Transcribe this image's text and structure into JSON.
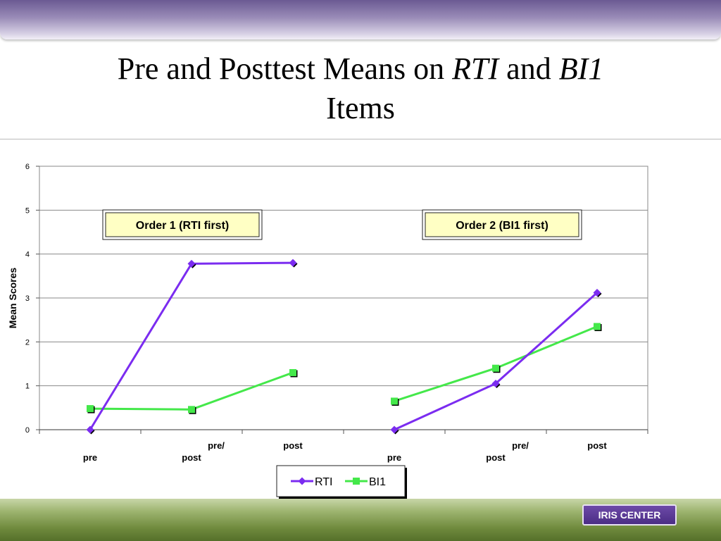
{
  "slide": {
    "title_part1": "Pre and Posttest Means on ",
    "title_rti": "RTI",
    "title_and": " and ",
    "title_bi1": "BI1",
    "title_line2": "Items",
    "badge": "IRIS CENTER"
  },
  "chart_data": {
    "type": "line",
    "title": "",
    "ylabel": "Mean Scores",
    "ylim": [
      0,
      6
    ],
    "yticks": [
      0,
      1,
      2,
      3,
      4,
      5,
      6
    ],
    "grid": true,
    "legend_position": "bottom-center",
    "groups": [
      {
        "label": "Order 1 (RTI first)",
        "categories": [
          "pre",
          "pre/\npost",
          "post"
        ]
      },
      {
        "label": "Order 2 (BI1 first)",
        "categories": [
          "pre",
          "pre/\npost",
          "post"
        ]
      }
    ],
    "series": [
      {
        "name": "RTI",
        "color": "#7b2cf0",
        "marker": "diamond",
        "values": [
          [
            0.0,
            3.78,
            3.8
          ],
          [
            0.0,
            1.05,
            3.12
          ]
        ]
      },
      {
        "name": "BI1",
        "color": "#44e84a",
        "marker": "square",
        "values": [
          [
            0.48,
            0.46,
            1.3
          ],
          [
            0.65,
            1.4,
            2.35
          ]
        ]
      }
    ]
  }
}
